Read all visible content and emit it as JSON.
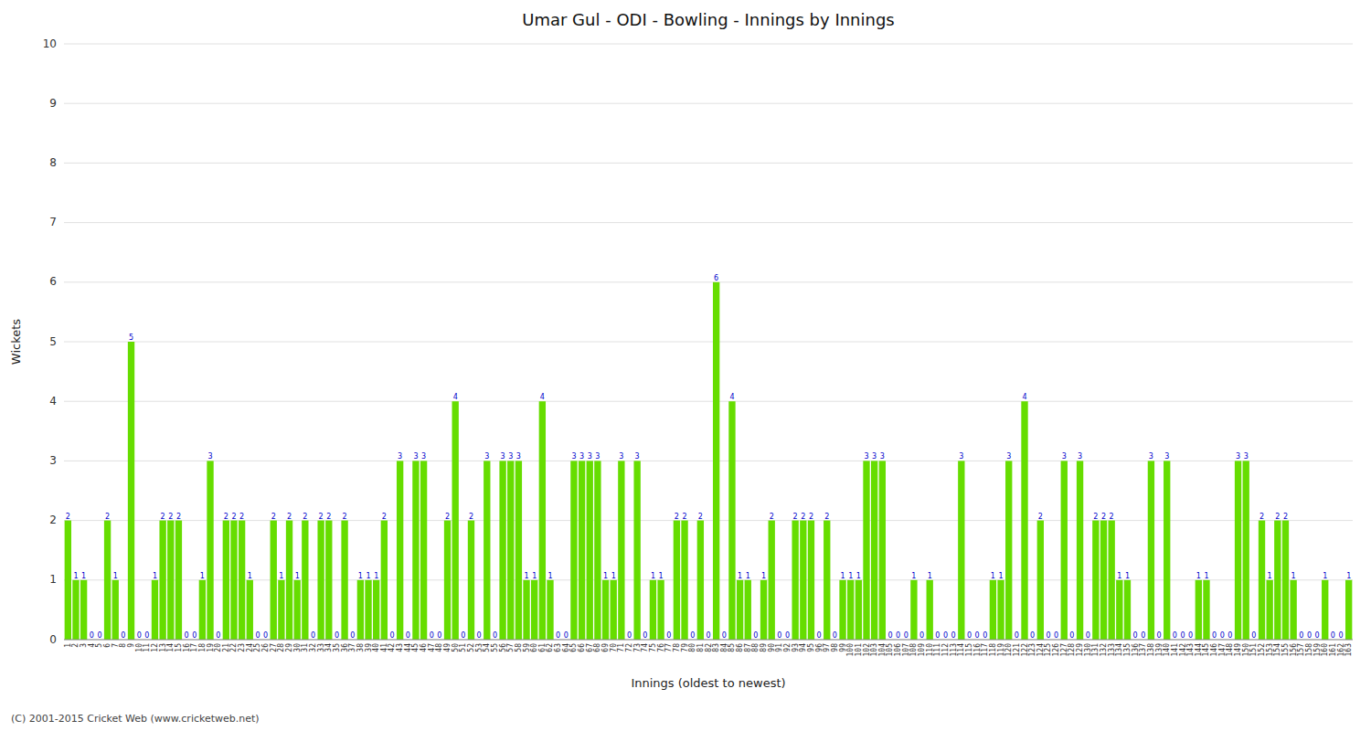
{
  "chart_data": {
    "type": "bar",
    "title": "Umar Gul - ODI - Bowling - Innings by Innings",
    "x_label": "Innings (oldest to newest)",
    "y_label": "Wickets",
    "footer": "(C) 2001-2015 Cricket Web (www.cricketweb.net)",
    "categories": [
      "1",
      "2",
      "3",
      "4",
      "5",
      "6",
      "7",
      "8",
      "9",
      "10",
      "11",
      "12",
      "13",
      "14",
      "15",
      "16",
      "17",
      "18",
      "19",
      "20",
      "21",
      "22",
      "23",
      "24",
      "25",
      "26",
      "27",
      "28",
      "29",
      "30",
      "31",
      "32",
      "33",
      "34",
      "35",
      "36",
      "37",
      "38",
      "39",
      "40",
      "41",
      "42",
      "43",
      "44",
      "45",
      "46",
      "47",
      "48",
      "49",
      "50",
      "51",
      "52",
      "53",
      "54",
      "55",
      "56",
      "57",
      "58",
      "59",
      "60",
      "61",
      "62",
      "63",
      "64",
      "65",
      "66",
      "67",
      "68",
      "69",
      "70",
      "71",
      "72",
      "73",
      "74",
      "75",
      "76",
      "77",
      "78",
      "79",
      "80",
      "81",
      "82",
      "83",
      "84",
      "85",
      "86",
      "87",
      "88",
      "89",
      "90",
      "91",
      "92",
      "93",
      "94",
      "95",
      "96",
      "97",
      "98",
      "99",
      "100",
      "101",
      "102",
      "103",
      "104",
      "105",
      "106",
      "107",
      "108",
      "109",
      "110",
      "111",
      "112",
      "113",
      "114",
      "115",
      "116",
      "117",
      "118",
      "119",
      "120",
      "121",
      "122",
      "123",
      "124",
      "125",
      "126",
      "127",
      "128",
      "129",
      "130",
      "131",
      "132",
      "133",
      "134",
      "135",
      "136",
      "137",
      "138",
      "139",
      "140",
      "141",
      "142",
      "143",
      "144",
      "145",
      "146",
      "147",
      "148",
      "149",
      "150",
      "151",
      "152",
      "153",
      "154",
      "155",
      "156",
      "157",
      "158",
      "159",
      "160",
      "161",
      "162",
      "163"
    ],
    "values": [
      2,
      1,
      1,
      0,
      0,
      2,
      1,
      0,
      5,
      0,
      0,
      1,
      2,
      2,
      2,
      0,
      0,
      1,
      3,
      0,
      2,
      2,
      2,
      1,
      0,
      0,
      2,
      1,
      2,
      1,
      2,
      0,
      2,
      2,
      0,
      2,
      0,
      1,
      1,
      1,
      2,
      0,
      3,
      0,
      3,
      3,
      0,
      0,
      2,
      4,
      0,
      2,
      0,
      3,
      0,
      3,
      3,
      3,
      1,
      1,
      4,
      1,
      0,
      0,
      3,
      3,
      3,
      3,
      1,
      1,
      3,
      0,
      3,
      0,
      1,
      1,
      0,
      2,
      2,
      0,
      2,
      0,
      6,
      0,
      4,
      1,
      1,
      0,
      1,
      2,
      0,
      0,
      2,
      2,
      2,
      0,
      2,
      0,
      1,
      1,
      1,
      3,
      3,
      3,
      0,
      0,
      0,
      1,
      0,
      1,
      0,
      0,
      0,
      3,
      0,
      0,
      0,
      1,
      1,
      3,
      0,
      4,
      0,
      2,
      0,
      0,
      3,
      0,
      3,
      0,
      2,
      2,
      2,
      1,
      1,
      0,
      0,
      3,
      0,
      3,
      0,
      0,
      0,
      1,
      1,
      0,
      0,
      0,
      3,
      3,
      0,
      2,
      1,
      2,
      2,
      1,
      0,
      0,
      0,
      1,
      0,
      0,
      1
    ],
    "color": "#66dd00",
    "ylim": [
      0,
      10
    ],
    "yticks": [
      0,
      1,
      2,
      3,
      4,
      5,
      6,
      7,
      8,
      9,
      10
    ],
    "grid": true,
    "data_labels": true
  }
}
